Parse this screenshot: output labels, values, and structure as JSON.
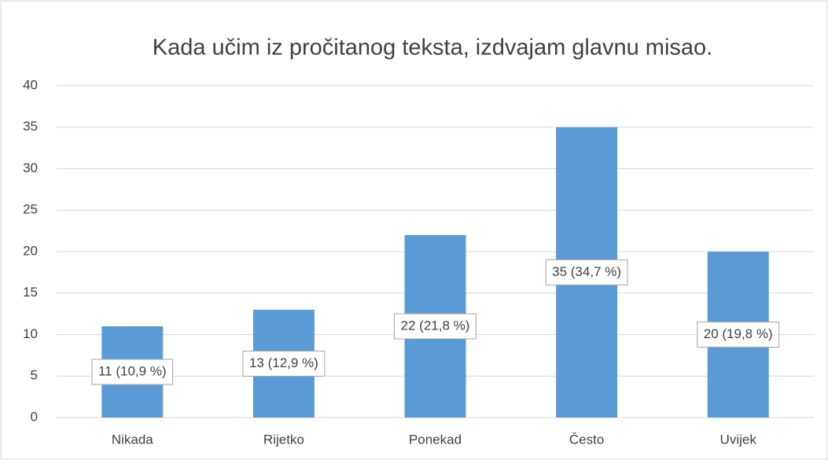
{
  "chart_data": {
    "type": "bar",
    "title": "Kada učim iz pročitanog teksta, izdvajam glavnu misao.",
    "categories": [
      "Nikada",
      "Rijetko",
      "Ponekad",
      "Često",
      "Uvijek"
    ],
    "values": [
      11,
      13,
      22,
      35,
      20
    ],
    "value_labels": [
      "11 (10,9 %)",
      "13 (12,9 %)",
      "22 (21,8 %)",
      "35 (34,7 %)",
      "20 (19,8 %)"
    ],
    "color": "#5b9bd5",
    "ylim": [
      0,
      40
    ],
    "yticks": [
      0,
      5,
      10,
      15,
      20,
      25,
      30,
      35,
      40
    ],
    "grid": true
  }
}
